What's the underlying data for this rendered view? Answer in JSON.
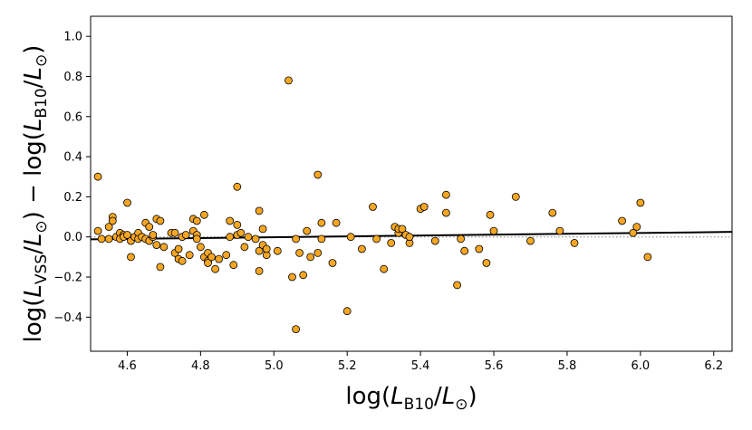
{
  "chart_data": {
    "type": "scatter",
    "xlabel": "log(L_B10/L_⊙)",
    "ylabel": "log(L_VSS/L_⊙) − log(L_B10/L_⊙)",
    "xlim": [
      4.5,
      6.25
    ],
    "ylim": [
      -0.57,
      1.1
    ],
    "x_ticks": [
      4.6,
      4.8,
      5.0,
      5.2,
      5.4,
      5.6,
      5.8,
      6.0,
      6.2
    ],
    "y_ticks": [
      -0.4,
      -0.2,
      0.0,
      0.2,
      0.4,
      0.6,
      0.8,
      1.0
    ],
    "grid": false,
    "marker_color": "#f5a623",
    "marker_edge": "#000000",
    "points": [
      [
        4.52,
        0.3
      ],
      [
        4.52,
        0.03
      ],
      [
        4.53,
        -0.01
      ],
      [
        4.55,
        0.05
      ],
      [
        4.55,
        -0.01
      ],
      [
        4.56,
        0.1
      ],
      [
        4.56,
        0.08
      ],
      [
        4.57,
        0.0
      ],
      [
        4.58,
        0.02
      ],
      [
        4.58,
        -0.01
      ],
      [
        4.59,
        0.01
      ],
      [
        4.59,
        0.0
      ],
      [
        4.6,
        0.01
      ],
      [
        4.6,
        0.17
      ],
      [
        4.61,
        -0.1
      ],
      [
        4.61,
        -0.02
      ],
      [
        4.62,
        0.0
      ],
      [
        4.63,
        0.02
      ],
      [
        4.63,
        -0.01
      ],
      [
        4.64,
        0.0
      ],
      [
        4.65,
        0.07
      ],
      [
        4.65,
        -0.01
      ],
      [
        4.66,
        0.05
      ],
      [
        4.66,
        -0.02
      ],
      [
        4.67,
        0.0
      ],
      [
        4.67,
        0.01
      ],
      [
        4.68,
        0.09
      ],
      [
        4.68,
        -0.04
      ],
      [
        4.69,
        -0.15
      ],
      [
        4.69,
        0.08
      ],
      [
        4.7,
        -0.05
      ],
      [
        4.72,
        0.02
      ],
      [
        4.73,
        -0.08
      ],
      [
        4.73,
        0.02
      ],
      [
        4.74,
        -0.06
      ],
      [
        4.74,
        -0.11
      ],
      [
        4.75,
        -0.12
      ],
      [
        4.75,
        0.0
      ],
      [
        4.76,
        0.01
      ],
      [
        4.77,
        -0.09
      ],
      [
        4.78,
        0.09
      ],
      [
        4.78,
        0.03
      ],
      [
        4.79,
        0.01
      ],
      [
        4.79,
        -0.01
      ],
      [
        4.79,
        0.08
      ],
      [
        4.8,
        -0.05
      ],
      [
        4.81,
        0.11
      ],
      [
        4.81,
        -0.1
      ],
      [
        4.82,
        -0.12
      ],
      [
        4.82,
        -0.13
      ],
      [
        4.82,
        -0.08
      ],
      [
        4.83,
        -0.1
      ],
      [
        4.84,
        -0.16
      ],
      [
        4.85,
        -0.11
      ],
      [
        4.87,
        -0.09
      ],
      [
        4.88,
        0.08
      ],
      [
        4.88,
        0.0
      ],
      [
        4.89,
        -0.14
      ],
      [
        4.9,
        0.01
      ],
      [
        4.9,
        0.06
      ],
      [
        4.9,
        0.25
      ],
      [
        4.91,
        0.02
      ],
      [
        4.92,
        -0.05
      ],
      [
        4.93,
        0.0
      ],
      [
        4.95,
        -0.01
      ],
      [
        4.96,
        -0.07
      ],
      [
        4.96,
        0.13
      ],
      [
        4.96,
        -0.17
      ],
      [
        4.97,
        0.04
      ],
      [
        4.97,
        -0.04
      ],
      [
        4.98,
        -0.09
      ],
      [
        4.98,
        -0.06
      ],
      [
        5.01,
        -0.07
      ],
      [
        5.04,
        0.78
      ],
      [
        5.05,
        -0.2
      ],
      [
        5.06,
        -0.01
      ],
      [
        5.06,
        -0.46
      ],
      [
        5.07,
        -0.08
      ],
      [
        5.08,
        -0.19
      ],
      [
        5.09,
        0.03
      ],
      [
        5.1,
        -0.1
      ],
      [
        5.12,
        -0.08
      ],
      [
        5.12,
        0.31
      ],
      [
        5.13,
        0.07
      ],
      [
        5.13,
        -0.01
      ],
      [
        5.16,
        -0.13
      ],
      [
        5.17,
        0.07
      ],
      [
        5.2,
        -0.37
      ],
      [
        5.21,
        0.0
      ],
      [
        5.24,
        -0.06
      ],
      [
        5.27,
        0.15
      ],
      [
        5.28,
        -0.01
      ],
      [
        5.3,
        -0.16
      ],
      [
        5.32,
        -0.03
      ],
      [
        5.33,
        0.05
      ],
      [
        5.34,
        0.02
      ],
      [
        5.34,
        0.04
      ],
      [
        5.35,
        0.04
      ],
      [
        5.36,
        0.01
      ],
      [
        5.37,
        -0.03
      ],
      [
        5.37,
        0.0
      ],
      [
        5.4,
        0.14
      ],
      [
        5.41,
        0.15
      ],
      [
        5.44,
        -0.02
      ],
      [
        5.47,
        0.21
      ],
      [
        5.47,
        0.12
      ],
      [
        5.5,
        -0.24
      ],
      [
        5.51,
        -0.01
      ],
      [
        5.52,
        -0.07
      ],
      [
        5.56,
        -0.06
      ],
      [
        5.58,
        -0.13
      ],
      [
        5.59,
        0.11
      ],
      [
        5.6,
        0.03
      ],
      [
        5.66,
        0.2
      ],
      [
        5.7,
        -0.02
      ],
      [
        5.76,
        0.12
      ],
      [
        5.78,
        0.03
      ],
      [
        5.82,
        -0.03
      ],
      [
        5.95,
        0.08
      ],
      [
        5.98,
        0.02
      ],
      [
        5.99,
        0.05
      ],
      [
        6.0,
        0.17
      ],
      [
        6.02,
        -0.1
      ]
    ],
    "fit_line": {
      "x": [
        4.5,
        6.25
      ],
      "y": [
        -0.012,
        0.025
      ],
      "color": "#000000"
    },
    "reference_line": {
      "y": 0.0,
      "color": "#999999",
      "style": "dotted"
    }
  }
}
